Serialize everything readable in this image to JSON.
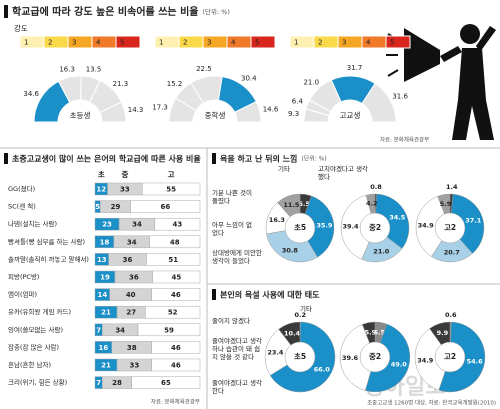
{
  "chart_data": [
    {
      "type": "gauge",
      "title": "학교급에 따라 강도 높은 비속어를 쓰는 비율",
      "unit": "(단위: %)",
      "legend_title": "강도",
      "categories": [
        "1",
        "2",
        "3",
        "4",
        "5"
      ],
      "level_colors": [
        "#fdf0b0",
        "#f9d84a",
        "#f5a623",
        "#f07a2a",
        "#d9261c"
      ],
      "base_color": "#e4e4e4",
      "highlight_color": "#1a8fc8",
      "series": [
        {
          "name": "초등생",
          "values": [
            34.6,
            16.3,
            13.5,
            21.3,
            14.3
          ]
        },
        {
          "name": "중학생",
          "values": [
            17.3,
            15.2,
            22.5,
            30.4,
            14.6
          ]
        },
        {
          "name": "고교생",
          "values": [
            9.3,
            6.4,
            21.0,
            31.7,
            31.6
          ],
          "value_labels": [
            "9.3",
            "6.4",
            "21.0",
            "31.7",
            "31.6"
          ]
        }
      ],
      "source": "자료: 문화체육관광부"
    },
    {
      "type": "stacked_hbar",
      "title": "초중고교생이 많이 쓰는 은어의 학교급에 따른 사용 비율",
      "categories": [
        "GG(졌다)",
        "SC(센 척)",
        "나댐(설치는 사람)",
        "빵셔틀(빵 심부름 하는 사람)",
        "솔까말(솔직히 까놓고 말해서)",
        "피방(PC방)",
        "엠이(엄마)",
        "유카(유희왕 게임 카드)",
        "잉여(쓸모없는 사람)",
        "잠충(잠 많은 사람)",
        "흔남(흔한 남자)",
        "크리(위기, 힘든 상황)"
      ],
      "xlim": [
        0,
        100
      ],
      "series": [
        {
          "name": "초",
          "color": "#1a8fc8",
          "values": [
            12,
            5,
            23,
            18,
            13,
            19,
            14,
            21,
            7,
            16,
            21,
            7
          ]
        },
        {
          "name": "중",
          "color": "#d4d4d4",
          "values": [
            33,
            29,
            34,
            34,
            36,
            36,
            40,
            27,
            34,
            38,
            33,
            28
          ]
        },
        {
          "name": "고",
          "color": "#ffffff",
          "values": [
            55,
            66,
            43,
            48,
            51,
            45,
            46,
            52,
            59,
            46,
            46,
            65
          ]
        }
      ],
      "source": "자료: 문화체육관광부"
    },
    {
      "type": "donut",
      "title": "욕을 하고 난 뒤의 느낌",
      "unit": "(단위: %)",
      "categories": [
        "기타",
        "고치야겠다고 생각했다",
        "상대방에게 미안한 생각이 들었다",
        "아무 느낌이 없었다",
        "기분 나쁜 것이 풀렸다"
      ],
      "colors": [
        "#3a3a3a",
        "#1a8fc8",
        "#a8d0e6",
        "#ffffff",
        "#a0a0a0"
      ],
      "series": [
        {
          "name": "초5",
          "values": [
            5.5,
            35.9,
            30.8,
            16.3,
            11.5
          ]
        },
        {
          "name": "중2",
          "values": [
            0.8,
            34.5,
            21.0,
            39.4,
            4.2
          ],
          "value_labels": [
            "0.8",
            "34.5",
            "21.0",
            "39.4",
            "4.2"
          ]
        },
        {
          "name": "고2",
          "values": [
            1.4,
            37.1,
            20.7,
            34.9,
            5.9
          ]
        }
      ]
    },
    {
      "type": "donut",
      "title": "본인의 욕설 사용에 대한 태도",
      "categories": [
        "기타",
        "줄여야겠다고 생각한다",
        "줄여야겠다고 생각하나 습관이 돼 쉽지 않을 것 같다",
        "줄이지 않겠다"
      ],
      "colors": [
        "#888888",
        "#1a8fc8",
        "#ffffff",
        "#3a3a3a"
      ],
      "series": [
        {
          "name": "초5",
          "values": [
            0.2,
            66.0,
            23.4,
            10.4
          ],
          "value_labels": [
            "0.2",
            "66.0",
            "23.4",
            "10.4"
          ]
        },
        {
          "name": "중2",
          "values": [
            5.5,
            49.0,
            39.6,
            5.9
          ],
          "value_labels": [
            "5.5",
            "49.0",
            "39.6",
            "5.9"
          ]
        },
        {
          "name": "고2",
          "values": [
            0.6,
            54.6,
            34.9,
            9.9
          ]
        }
      ]
    }
  ],
  "footnote": "초중고교생 1260명 대상, 자료: 한국교육개발원(2010)",
  "watermark": "동아일보"
}
